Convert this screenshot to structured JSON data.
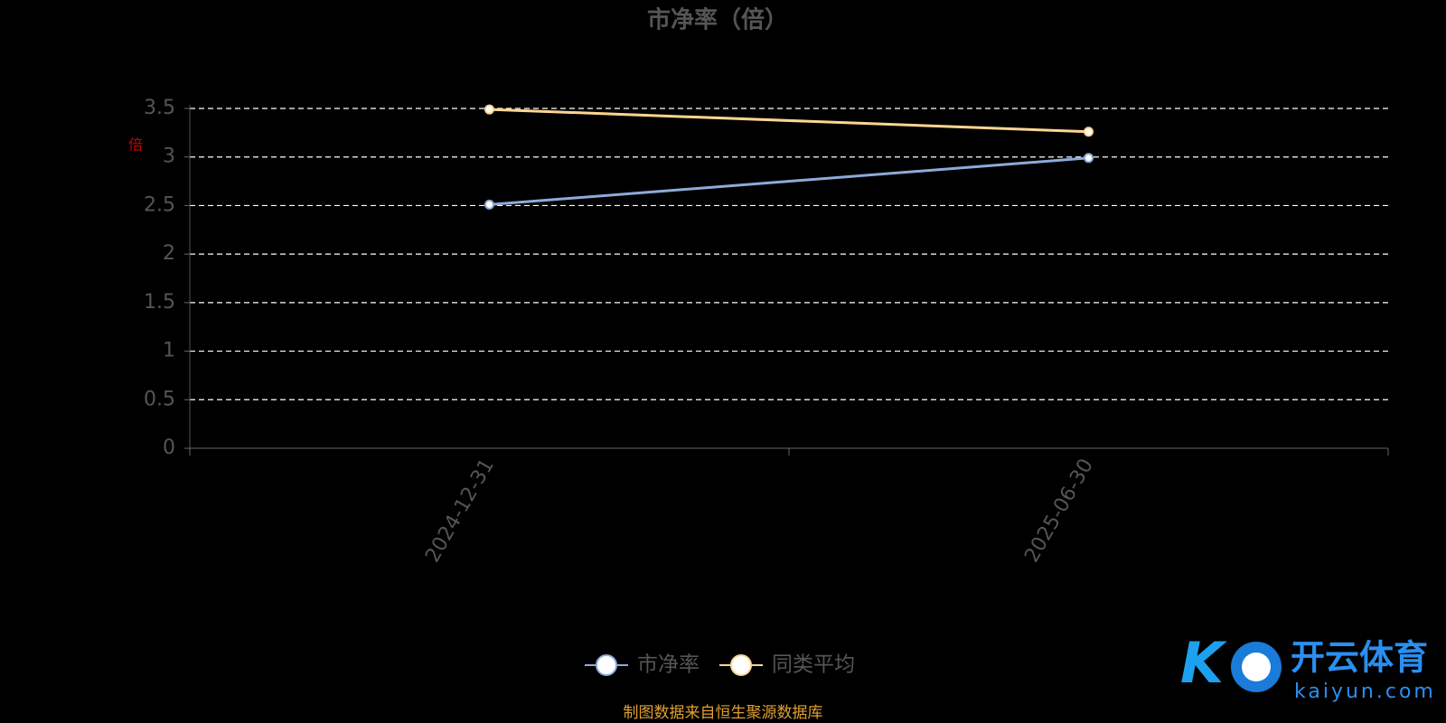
{
  "chart_data": {
    "type": "line",
    "title": "市净率（倍）",
    "y_label": "倍",
    "categories": [
      "2024-12-31",
      "2025-06-30"
    ],
    "series": [
      {
        "name": "市净率",
        "color": "#8eaadb",
        "values": [
          2.51,
          2.99
        ]
      },
      {
        "name": "同类平均",
        "color": "#ffd591",
        "values": [
          3.49,
          3.26
        ]
      }
    ],
    "ylim": [
      0,
      3.5
    ],
    "yticks": [
      0,
      0.5,
      1,
      1.5,
      2,
      2.5,
      3,
      3.5
    ],
    "grid": true,
    "legend": "bottom",
    "source": "制图数据来自恒生聚源数据库"
  },
  "watermark": {
    "name": "开云体育",
    "site": "kaiyun.com"
  }
}
